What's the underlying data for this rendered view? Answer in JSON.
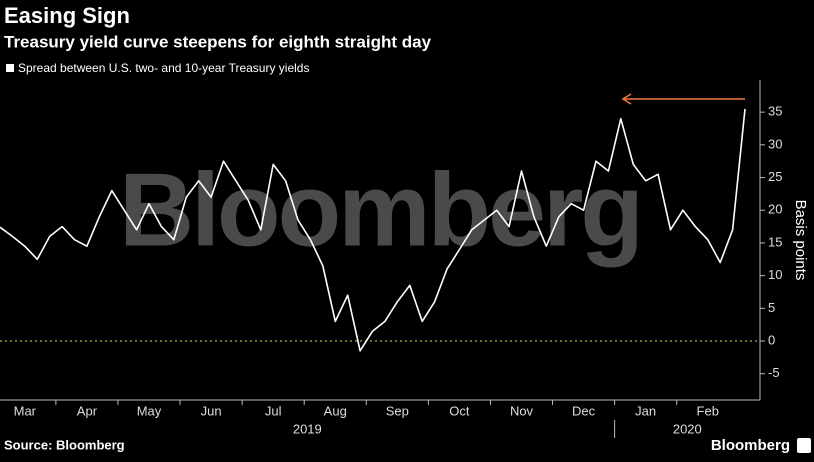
{
  "chart_data": {
    "type": "line",
    "title": "Easing Sign",
    "subtitle": "Treasury yield curve steepens for eighth straight day",
    "y_label": "Basis points",
    "source": "Source: Bloomberg",
    "watermark": "Bloomberg",
    "logo": "Bloomberg",
    "year_labels": [
      "2019",
      "2020"
    ],
    "categories": [
      null,
      null,
      "Mar",
      null,
      null,
      null,
      null,
      "Apr",
      null,
      null,
      null,
      null,
      "May",
      null,
      null,
      null,
      null,
      "Jun",
      null,
      null,
      null,
      null,
      "Jul",
      null,
      null,
      null,
      null,
      "Aug",
      null,
      null,
      null,
      null,
      "Sep",
      null,
      null,
      null,
      null,
      "Oct",
      null,
      null,
      null,
      null,
      "Nov",
      null,
      null,
      null,
      null,
      "Dec",
      null,
      null,
      null,
      null,
      "Jan",
      null,
      null,
      null,
      null,
      "Feb",
      null,
      null,
      null
    ],
    "series": [
      {
        "name": "Spread between U.S. two- and 10-year Treasury yields",
        "color": "#ffffff",
        "values": [
          17.4,
          16,
          14.5,
          12.5,
          16,
          17.5,
          15.5,
          14.5,
          19,
          23,
          20,
          17,
          21,
          17.5,
          15.5,
          22,
          24.5,
          22,
          27.5,
          24.5,
          21.5,
          17,
          27,
          24.5,
          18.5,
          15.5,
          11.5,
          3,
          7,
          -1.5,
          1.5,
          3,
          6,
          8.5,
          3,
          6,
          11,
          14,
          17,
          18.5,
          20,
          17.5,
          26,
          19,
          14.5,
          19,
          21,
          20,
          27.5,
          26,
          34,
          27,
          24.5,
          25.5,
          17,
          20,
          17.5,
          15.5,
          12,
          17,
          35.5
        ]
      }
    ],
    "ylim": [
      -7,
      38
    ],
    "yticks": [
      -5,
      0,
      5,
      10,
      15,
      20,
      25,
      30,
      35
    ],
    "y_axis_side": "right",
    "zero_line": true,
    "zero_line_color": "#e8d96a",
    "annotation_arrow_color": "#f07b3f"
  }
}
